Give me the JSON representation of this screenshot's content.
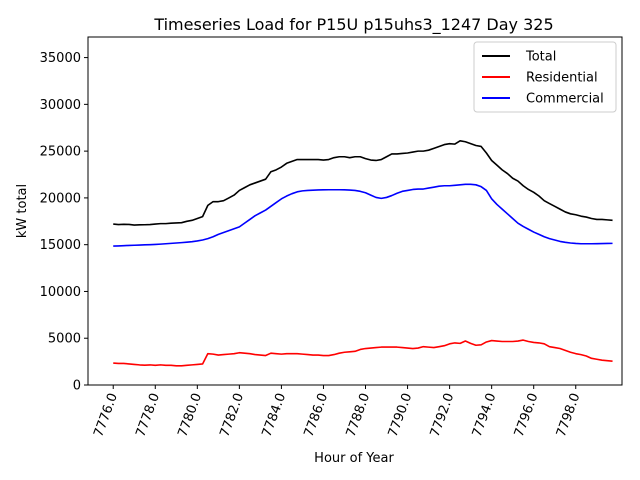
{
  "chart_data": {
    "type": "line",
    "title": "Timeseries Load for P15U p15uhs3_1247  Day 325",
    "xlabel": "Hour of Year",
    "ylabel": "kW total",
    "xlim": [
      7774.8,
      7800.2
    ],
    "ylim": [
      0,
      37200
    ],
    "xticks": [
      7776,
      7778,
      7780,
      7782,
      7784,
      7786,
      7788,
      7790,
      7792,
      7794,
      7796,
      7798
    ],
    "xtick_labels": [
      "7776.0",
      "7778.0",
      "7780.0",
      "7782.0",
      "7784.0",
      "7786.0",
      "7788.0",
      "7790.0",
      "7792.0",
      "7794.0",
      "7796.0",
      "7798.0"
    ],
    "yticks": [
      0,
      5000,
      10000,
      15000,
      20000,
      25000,
      30000,
      35000
    ],
    "ytick_labels": [
      "0",
      "5000",
      "10000",
      "15000",
      "20000",
      "25000",
      "30000",
      "35000"
    ],
    "grid": false,
    "legend_position": "top-right",
    "x": [
      7776.0,
      7776.25,
      7776.5,
      7776.75,
      7777.0,
      7777.25,
      7777.5,
      7777.75,
      7778.0,
      7778.25,
      7778.5,
      7778.75,
      7779.0,
      7779.25,
      7779.5,
      7779.75,
      7780.0,
      7780.25,
      7780.5,
      7780.75,
      7781.0,
      7781.25,
      7781.5,
      7781.75,
      7782.0,
      7782.25,
      7782.5,
      7782.75,
      7783.0,
      7783.25,
      7783.5,
      7783.75,
      7784.0,
      7784.25,
      7784.5,
      7784.75,
      7785.0,
      7785.25,
      7785.5,
      7785.75,
      7786.0,
      7786.25,
      7786.5,
      7786.75,
      7787.0,
      7787.25,
      7787.5,
      7787.75,
      7788.0,
      7788.25,
      7788.5,
      7788.75,
      7789.0,
      7789.25,
      7789.5,
      7789.75,
      7790.0,
      7790.25,
      7790.5,
      7790.75,
      7791.0,
      7791.25,
      7791.5,
      7791.75,
      7792.0,
      7792.25,
      7792.5,
      7792.75,
      7793.0,
      7793.25,
      7793.5,
      7793.75,
      7794.0,
      7794.25,
      7794.5,
      7794.75,
      7795.0,
      7795.25,
      7795.5,
      7795.75,
      7796.0,
      7796.25,
      7796.5,
      7796.75,
      7797.0,
      7797.25,
      7797.5,
      7797.75,
      7798.0,
      7798.25,
      7798.5,
      7798.75,
      7799.0,
      7799.25,
      7799.5,
      7799.75
    ],
    "series": [
      {
        "name": "Total",
        "color": "#000000",
        "values": [
          17200,
          17150,
          17180,
          17160,
          17100,
          17120,
          17130,
          17150,
          17200,
          17250,
          17250,
          17300,
          17320,
          17350,
          17500,
          17600,
          17800,
          18000,
          19200,
          19600,
          19600,
          19700,
          20000,
          20300,
          20800,
          21100,
          21400,
          21600,
          21800,
          22000,
          22800,
          23000,
          23300,
          23700,
          23900,
          24100,
          24100,
          24100,
          24100,
          24100,
          24050,
          24100,
          24300,
          24400,
          24400,
          24300,
          24400,
          24400,
          24200,
          24050,
          24000,
          24100,
          24400,
          24700,
          24700,
          24750,
          24800,
          24900,
          25000,
          25000,
          25100,
          25300,
          25500,
          25700,
          25800,
          25750,
          26100,
          26000,
          25800,
          25600,
          25500,
          24800,
          24000,
          23500,
          23000,
          22600,
          22100,
          21800,
          21300,
          20900,
          20600,
          20200,
          19700,
          19400,
          19100,
          18800,
          18500,
          18300,
          18200,
          18050,
          17950,
          17800,
          17700,
          17700,
          17650,
          17600
        ]
      },
      {
        "name": "Residential",
        "color": "#ff0000",
        "values": [
          2350,
          2300,
          2300,
          2250,
          2200,
          2150,
          2120,
          2150,
          2100,
          2150,
          2100,
          2100,
          2050,
          2050,
          2100,
          2150,
          2200,
          2250,
          3350,
          3300,
          3200,
          3250,
          3300,
          3350,
          3450,
          3400,
          3350,
          3250,
          3200,
          3150,
          3400,
          3350,
          3300,
          3350,
          3350,
          3350,
          3300,
          3250,
          3200,
          3200,
          3150,
          3150,
          3250,
          3400,
          3500,
          3550,
          3600,
          3800,
          3900,
          3950,
          4000,
          4050,
          4050,
          4050,
          4050,
          4000,
          3950,
          3900,
          3950,
          4100,
          4050,
          4000,
          4100,
          4200,
          4400,
          4500,
          4450,
          4700,
          4450,
          4250,
          4300,
          4600,
          4750,
          4700,
          4650,
          4650,
          4650,
          4700,
          4800,
          4650,
          4550,
          4500,
          4400,
          4100,
          4000,
          3900,
          3700,
          3500,
          3350,
          3250,
          3100,
          2850,
          2750,
          2650,
          2600,
          2550
        ]
      },
      {
        "name": "Commercial",
        "color": "#0000ff",
        "values": [
          14850,
          14870,
          14890,
          14920,
          14940,
          14960,
          14980,
          15000,
          15030,
          15060,
          15100,
          15140,
          15180,
          15220,
          15270,
          15320,
          15400,
          15500,
          15650,
          15850,
          16100,
          16300,
          16500,
          16700,
          16900,
          17300,
          17700,
          18100,
          18400,
          18700,
          19100,
          19500,
          19900,
          20200,
          20450,
          20650,
          20750,
          20800,
          20830,
          20850,
          20860,
          20870,
          20870,
          20870,
          20860,
          20840,
          20800,
          20700,
          20550,
          20300,
          20050,
          19950,
          20050,
          20250,
          20500,
          20700,
          20800,
          20900,
          20950,
          20950,
          21050,
          21150,
          21250,
          21300,
          21300,
          21350,
          21400,
          21450,
          21450,
          21400,
          21200,
          20800,
          19900,
          19300,
          18800,
          18300,
          17800,
          17300,
          16950,
          16650,
          16350,
          16100,
          15850,
          15650,
          15500,
          15350,
          15250,
          15180,
          15130,
          15100,
          15100,
          15100,
          15110,
          15120,
          15130,
          15140
        ]
      }
    ]
  }
}
